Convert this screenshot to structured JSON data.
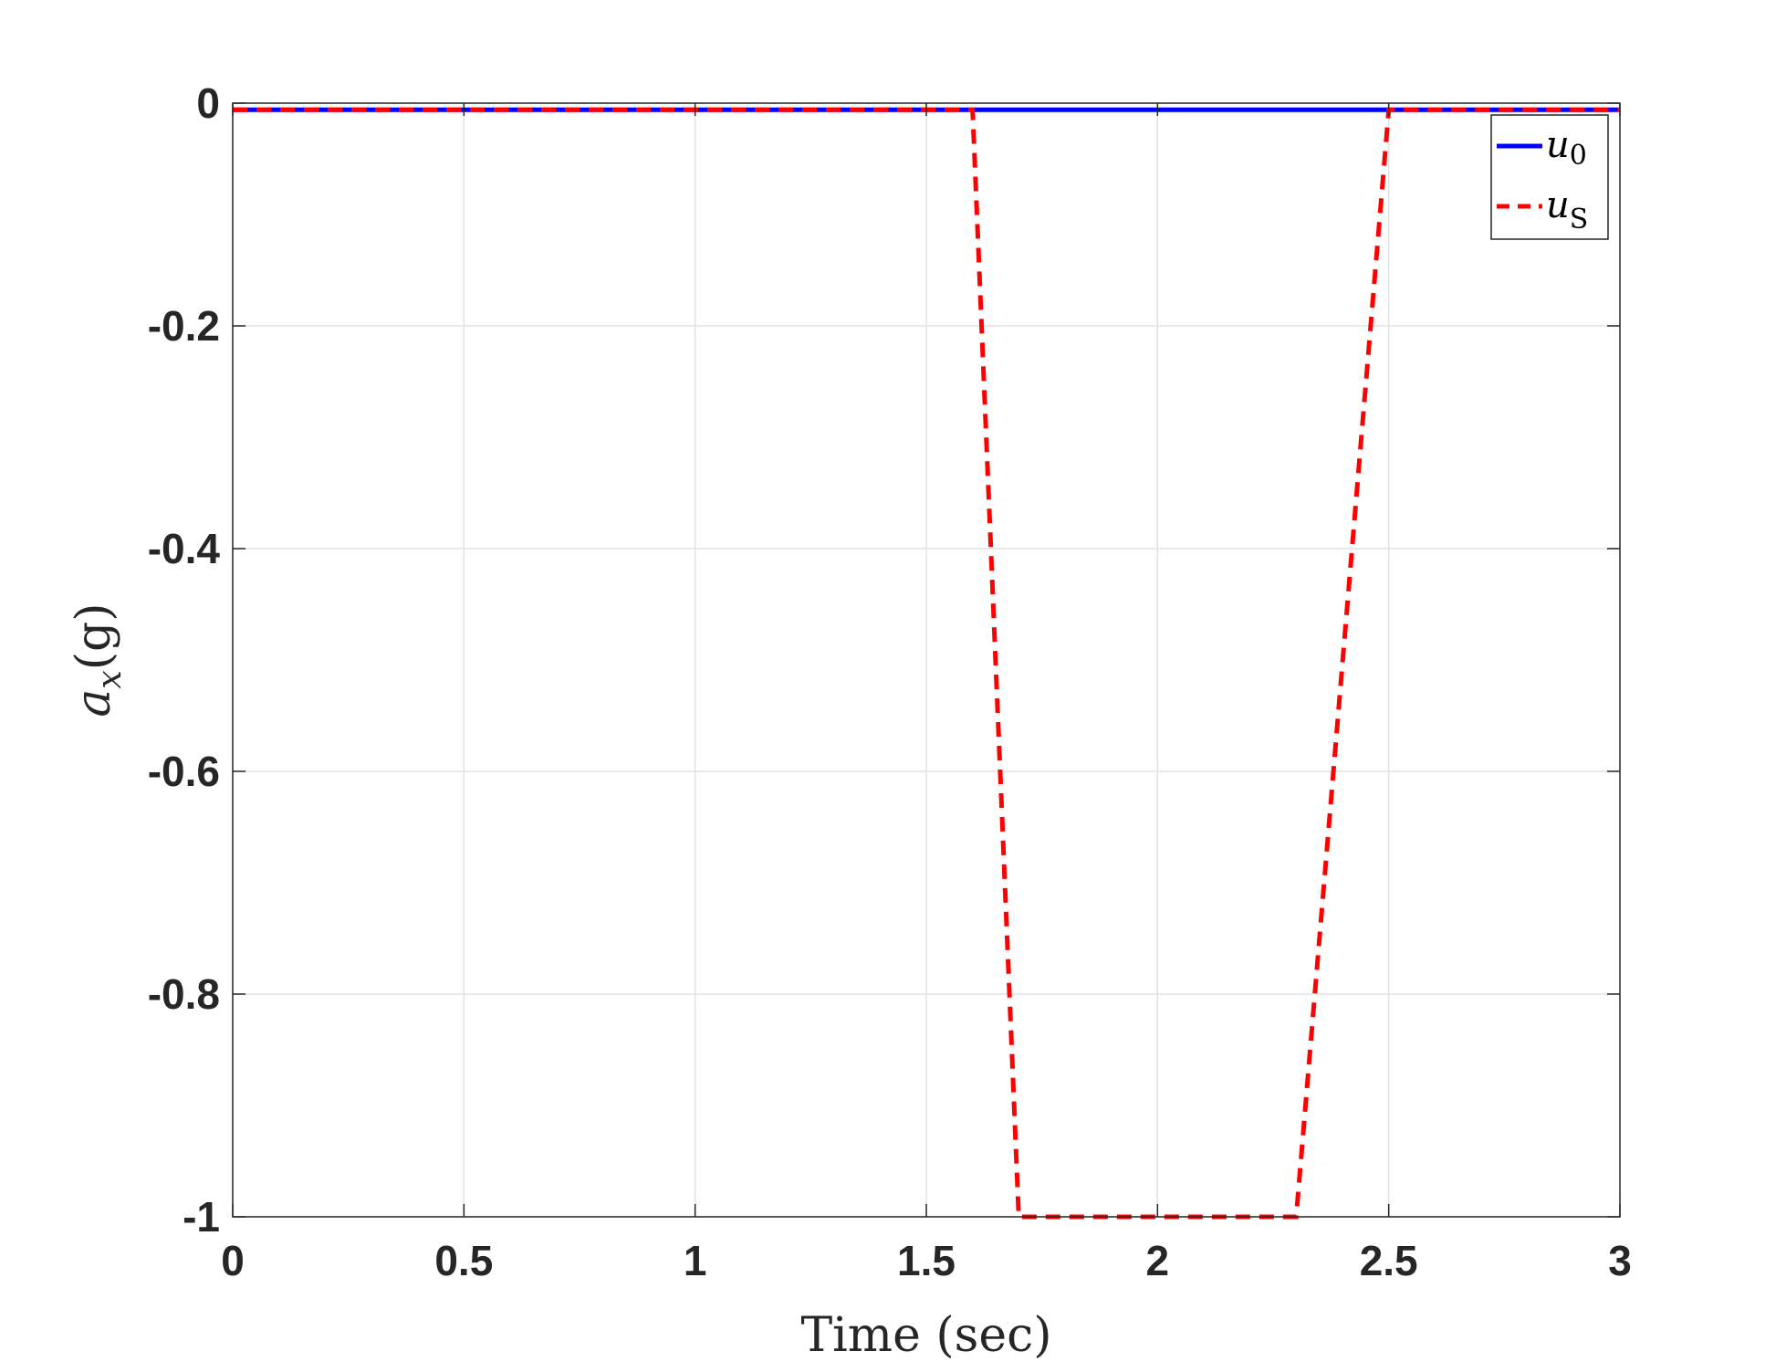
{
  "chart_data": {
    "type": "line",
    "xlabel": "Time (sec)",
    "ylabel_main": "a",
    "ylabel_sub": "x",
    "ylabel_rest": "(g)",
    "xlim": [
      0,
      3
    ],
    "ylim": [
      -1,
      0
    ],
    "xticks": [
      0,
      0.5,
      1,
      1.5,
      2,
      2.5,
      3
    ],
    "xtick_labels": [
      "0",
      "0.5",
      "1",
      "1.5",
      "2",
      "2.5",
      "3"
    ],
    "yticks": [
      0,
      -0.2,
      -0.4,
      -0.6,
      -0.8,
      -1
    ],
    "ytick_labels": [
      "0",
      "-0.2",
      "-0.4",
      "-0.6",
      "-0.8",
      "-1"
    ],
    "grid": true,
    "legend_position": "top-right",
    "series": [
      {
        "name": "u0",
        "label_main": "u",
        "label_sub": "0",
        "color": "#0000FF",
        "style": "solid",
        "x": [
          0,
          3
        ],
        "y": [
          -0.006,
          -0.006
        ]
      },
      {
        "name": "uS",
        "label_main": "u",
        "label_sub": "S",
        "color": "#FF0000",
        "style": "dashed",
        "x": [
          0,
          1.6,
          1.7,
          2.3,
          2.5,
          3
        ],
        "y": [
          -0.006,
          -0.006,
          -1,
          -1,
          -0.006,
          -0.006
        ]
      }
    ]
  }
}
